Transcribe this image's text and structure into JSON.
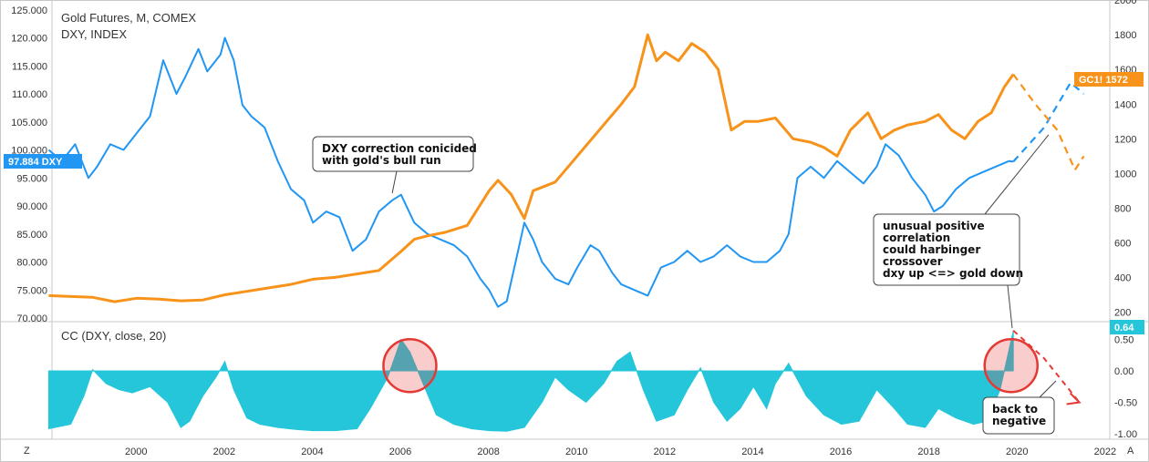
{
  "title_line1": "Gold Futures, M, COMEX",
  "title_line2": "DXY, INDEX",
  "cc_label": "CC (DXY, close, 20)",
  "colors": {
    "dxy": "#2196f3",
    "gold": "#f7931a",
    "cc": "#26c6da",
    "highlight": "#e53935"
  },
  "chart_data": [
    {
      "type": "line",
      "x_ticks": [
        "2000",
        "2002",
        "2004",
        "2006",
        "2008",
        "2010",
        "2012",
        "2014",
        "2016",
        "2018",
        "2020",
        "2022"
      ],
      "left_axis": {
        "ticks": [
          "70.000",
          "75.000",
          "80.000",
          "85.000",
          "90.000",
          "95.000",
          "100.000",
          "105.000",
          "110.000",
          "115.000",
          "120.000",
          "125.000"
        ],
        "ylim": [
          70,
          125
        ]
      },
      "right_axis": {
        "ticks": [
          "200",
          "400",
          "600",
          "800",
          "1000",
          "1200",
          "1400",
          "1600",
          "1800",
          "2000"
        ],
        "ylim": [
          150,
          2000
        ]
      },
      "series": [
        {
          "name": "DXY",
          "axis": "left",
          "last_label": "97.884",
          "x": [
            1998.0,
            1998.3,
            1998.6,
            1998.9,
            1999.1,
            1999.4,
            1999.7,
            2000.0,
            2000.3,
            2000.6,
            2000.9,
            2001.1,
            2001.4,
            2001.6,
            2001.9,
            2002.0,
            2002.2,
            2002.4,
            2002.6,
            2002.9,
            2003.2,
            2003.5,
            2003.8,
            2004.0,
            2004.3,
            2004.6,
            2004.9,
            2005.2,
            2005.5,
            2005.8,
            2006.0,
            2006.3,
            2006.6,
            2006.9,
            2007.2,
            2007.5,
            2007.8,
            2008.0,
            2008.2,
            2008.4,
            2008.6,
            2008.8,
            2009.0,
            2009.2,
            2009.5,
            2009.8,
            2010.0,
            2010.3,
            2010.5,
            2010.8,
            2011.0,
            2011.3,
            2011.6,
            2011.9,
            2012.2,
            2012.5,
            2012.8,
            2013.1,
            2013.4,
            2013.7,
            2014.0,
            2014.3,
            2014.6,
            2014.8,
            2015.0,
            2015.3,
            2015.6,
            2015.9,
            2016.2,
            2016.5,
            2016.8,
            2017.0,
            2017.3,
            2017.6,
            2017.9,
            2018.1,
            2018.3,
            2018.6,
            2018.9,
            2019.2,
            2019.5,
            2019.8,
            2019.9
          ],
          "values": [
            100,
            98,
            101,
            95,
            97,
            101,
            100,
            103,
            106,
            116,
            110,
            113,
            118,
            114,
            117,
            120,
            116,
            108,
            106,
            104,
            98,
            93,
            91,
            87,
            89,
            88,
            82,
            84,
            89,
            91,
            92,
            87,
            85,
            84,
            83,
            81,
            77,
            75,
            72,
            73,
            80,
            87,
            84,
            80,
            77,
            76,
            79,
            83,
            82,
            78,
            76,
            75,
            74,
            79,
            80,
            82,
            80,
            81,
            83,
            81,
            80,
            80,
            82,
            85,
            95,
            97,
            95,
            98,
            96,
            94,
            97,
            101,
            99,
            95,
            92,
            89,
            90,
            93,
            95,
            96,
            97,
            98,
            97.9
          ]
        },
        {
          "name": "GC1!",
          "axis": "right",
          "last_label": "1572",
          "x": [
            1998.0,
            1998.5,
            1999.0,
            1999.5,
            2000.0,
            2000.5,
            2001.0,
            2001.5,
            2002.0,
            2002.5,
            2003.0,
            2003.5,
            2004.0,
            2004.5,
            2005.0,
            2005.5,
            2006.0,
            2006.3,
            2006.6,
            2007.0,
            2007.5,
            2008.0,
            2008.2,
            2008.5,
            2008.8,
            2009.0,
            2009.5,
            2010.0,
            2010.5,
            2011.0,
            2011.3,
            2011.6,
            2011.8,
            2012.0,
            2012.3,
            2012.6,
            2012.9,
            2013.2,
            2013.5,
            2013.8,
            2014.1,
            2014.5,
            2014.9,
            2015.3,
            2015.6,
            2015.9,
            2016.2,
            2016.6,
            2016.9,
            2017.2,
            2017.5,
            2017.9,
            2018.2,
            2018.5,
            2018.8,
            2019.1,
            2019.4,
            2019.7,
            2019.9
          ],
          "values": [
            295,
            290,
            285,
            260,
            280,
            275,
            265,
            270,
            300,
            320,
            340,
            360,
            390,
            400,
            420,
            440,
            550,
            620,
            640,
            660,
            700,
            900,
            960,
            880,
            740,
            900,
            950,
            1100,
            1250,
            1400,
            1500,
            1800,
            1650,
            1700,
            1650,
            1750,
            1700,
            1600,
            1250,
            1300,
            1300,
            1320,
            1200,
            1180,
            1150,
            1100,
            1250,
            1350,
            1200,
            1250,
            1280,
            1300,
            1340,
            1250,
            1200,
            1300,
            1350,
            1500,
            1572
          ]
        }
      ],
      "projections": [
        {
          "name": "DXY projection",
          "x": [
            2019.9,
            2020.6,
            2021.2,
            2021.5
          ],
          "values": [
            97.9,
            104,
            112,
            110
          ]
        },
        {
          "name": "Gold projection",
          "x": [
            2019.9,
            2020.4,
            2020.9,
            2021.3,
            2021.5
          ],
          "values": [
            1572,
            1400,
            1250,
            1020,
            1100
          ]
        }
      ],
      "annotations": [
        {
          "text": "DXY correction conicided\nwith gold's bull run"
        },
        {
          "text": "unusual positive\ncorrelation\ncould harbinger\ncrossover\ndxy up <=> gold down"
        }
      ]
    },
    {
      "type": "area",
      "title": "CC (DXY, close, 20)",
      "y_ticks": [
        "-1.00",
        "-0.50",
        "0.00",
        "0.50"
      ],
      "ylim": [
        -1,
        0.7
      ],
      "last_label": "0.64",
      "x": [
        1998.0,
        1998.5,
        1998.8,
        1999.0,
        1999.3,
        1999.6,
        1999.9,
        2000.3,
        2000.7,
        2001.0,
        2001.2,
        2001.5,
        2001.8,
        2002.0,
        2002.2,
        2002.5,
        2002.8,
        2003.2,
        2003.6,
        2004.0,
        2004.5,
        2005.0,
        2005.3,
        2005.7,
        2006.0,
        2006.2,
        2006.5,
        2006.8,
        2007.2,
        2007.6,
        2008.0,
        2008.4,
        2008.8,
        2009.2,
        2009.5,
        2009.8,
        2010.2,
        2010.6,
        2010.9,
        2011.2,
        2011.5,
        2011.8,
        2012.2,
        2012.5,
        2012.8,
        2013.1,
        2013.4,
        2013.7,
        2014.0,
        2014.3,
        2014.5,
        2014.8,
        2015.2,
        2015.6,
        2016.0,
        2016.4,
        2016.8,
        2017.2,
        2017.5,
        2017.9,
        2018.2,
        2018.6,
        2019.0,
        2019.3,
        2019.6,
        2019.9
      ],
      "values": [
        -0.92,
        -0.85,
        -0.4,
        0.02,
        -0.2,
        -0.3,
        -0.35,
        -0.25,
        -0.5,
        -0.9,
        -0.8,
        -0.4,
        -0.1,
        0.15,
        -0.3,
        -0.75,
        -0.85,
        -0.9,
        -0.93,
        -0.95,
        -0.95,
        -0.92,
        -0.6,
        -0.1,
        0.5,
        0.3,
        -0.2,
        -0.7,
        -0.85,
        -0.92,
        -0.95,
        -0.96,
        -0.9,
        -0.5,
        -0.1,
        -0.3,
        -0.5,
        -0.2,
        0.15,
        0.3,
        -0.3,
        -0.8,
        -0.7,
        -0.3,
        0.05,
        -0.5,
        -0.8,
        -0.6,
        -0.25,
        -0.6,
        -0.2,
        0.12,
        -0.4,
        -0.7,
        -0.85,
        -0.8,
        -0.3,
        -0.6,
        -0.85,
        -0.9,
        -0.6,
        -0.75,
        -0.85,
        -0.8,
        -0.3,
        0.64
      ],
      "projection": {
        "x": [
          2019.9,
          2020.6,
          2021.4
        ],
        "values": [
          0.64,
          0.2,
          -0.5
        ]
      },
      "annotation": {
        "text": "back to\nnegative"
      }
    }
  ]
}
